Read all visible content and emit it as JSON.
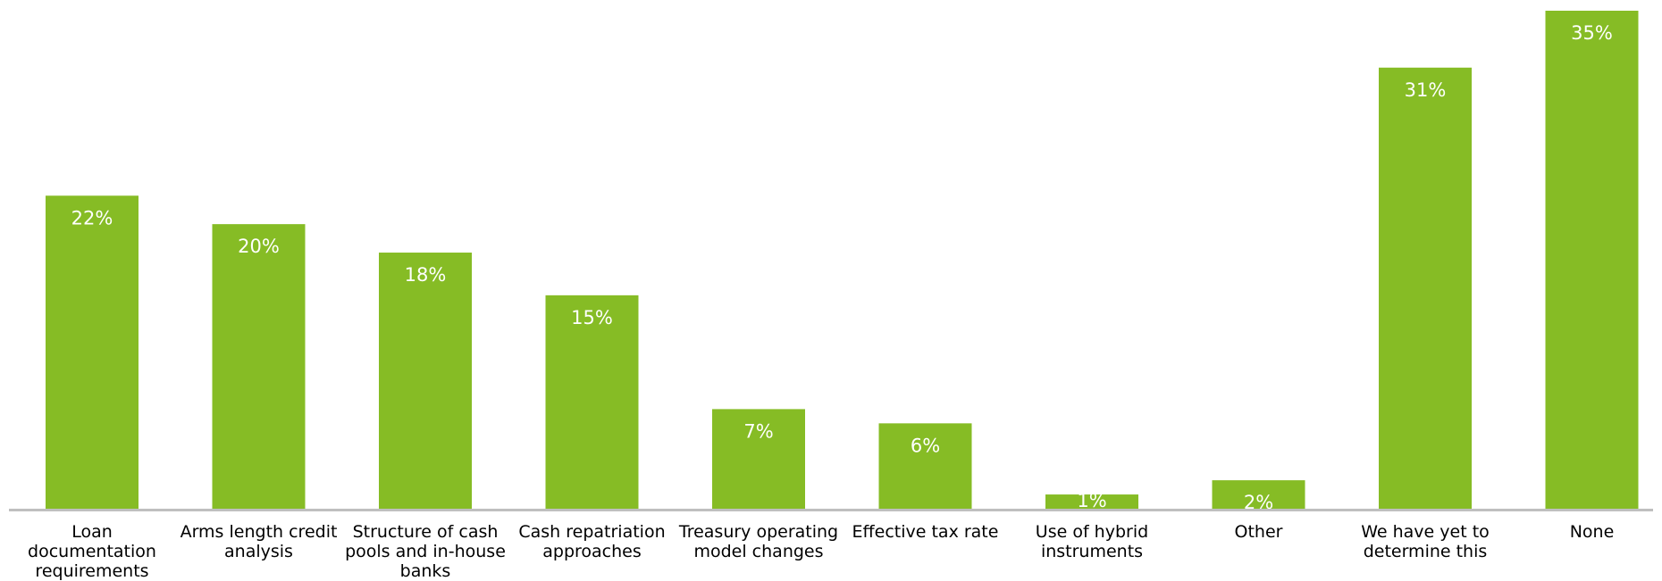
{
  "chart_data": {
    "type": "bar",
    "categories": [
      "Loan documentation requirements",
      "Arms length credit analysis",
      "Structure of cash pools and in-house banks",
      "Cash repatriation approaches",
      "Treasury operating model changes",
      "Effective tax rate",
      "Use of hybrid instruments",
      "Other",
      "We have yet to determine this",
      "None"
    ],
    "values": [
      22,
      20,
      18,
      15,
      7,
      6,
      1,
      2,
      31,
      35
    ],
    "data_labels": [
      "22%",
      "20%",
      "18%",
      "15%",
      "7%",
      "6%",
      "1%",
      "2%",
      "31%",
      "35%"
    ],
    "title": "",
    "xlabel": "",
    "ylabel": "",
    "ylim": [
      0,
      35
    ],
    "grid": false,
    "legend": "none",
    "colors": {
      "bar": "#86bc25",
      "axis": "#bfbfbf",
      "data_label": "#ffffff",
      "category_label": "#000000"
    }
  }
}
